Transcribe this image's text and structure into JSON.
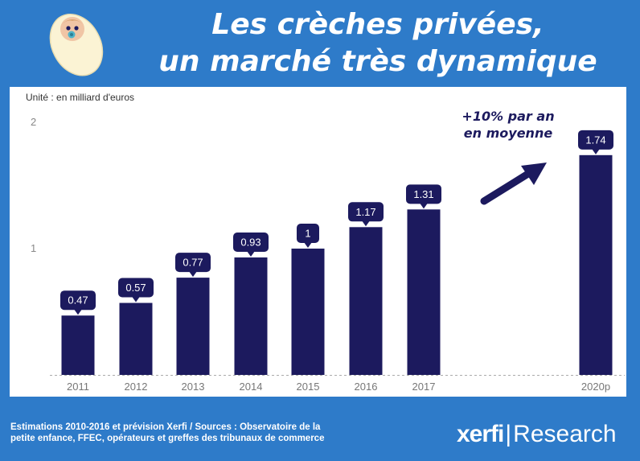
{
  "header": {
    "title_line1": "Les crèches privées,",
    "title_line2": "un marché très dynamique"
  },
  "chart_data": {
    "type": "bar",
    "unit_label": "Unité : en milliard d'euros",
    "categories": [
      "2011",
      "2012",
      "2013",
      "2014",
      "2015",
      "2016",
      "2017",
      "2020p"
    ],
    "values": [
      0.47,
      0.57,
      0.77,
      0.93,
      1,
      1.17,
      1.31,
      1.74
    ],
    "value_labels": [
      "0.47",
      "0.57",
      "0.77",
      "0.93",
      "1",
      "1.17",
      "1.31",
      "1.74"
    ],
    "y_ticks": [
      "1",
      "2"
    ],
    "ylim": [
      0,
      2
    ],
    "grid": false,
    "annotation_line1": "+10% par an",
    "annotation_line2": "en moyenne",
    "colors": {
      "bar": "#1c1a5e",
      "background": "#2e7bc9"
    }
  },
  "footer": {
    "source_line1": "Estimations 2010-2016 et prévision Xerfi / Sources : Observatoire de la",
    "source_line2": "petite enfance, FFEC, opérateurs et greffes des tribunaux de commerce",
    "brand_part1": "xerfi",
    "brand_separator": "|",
    "brand_part2": "Research"
  },
  "icons": {
    "illustration": "baby-icon",
    "trend": "arrow-up-right-icon"
  }
}
